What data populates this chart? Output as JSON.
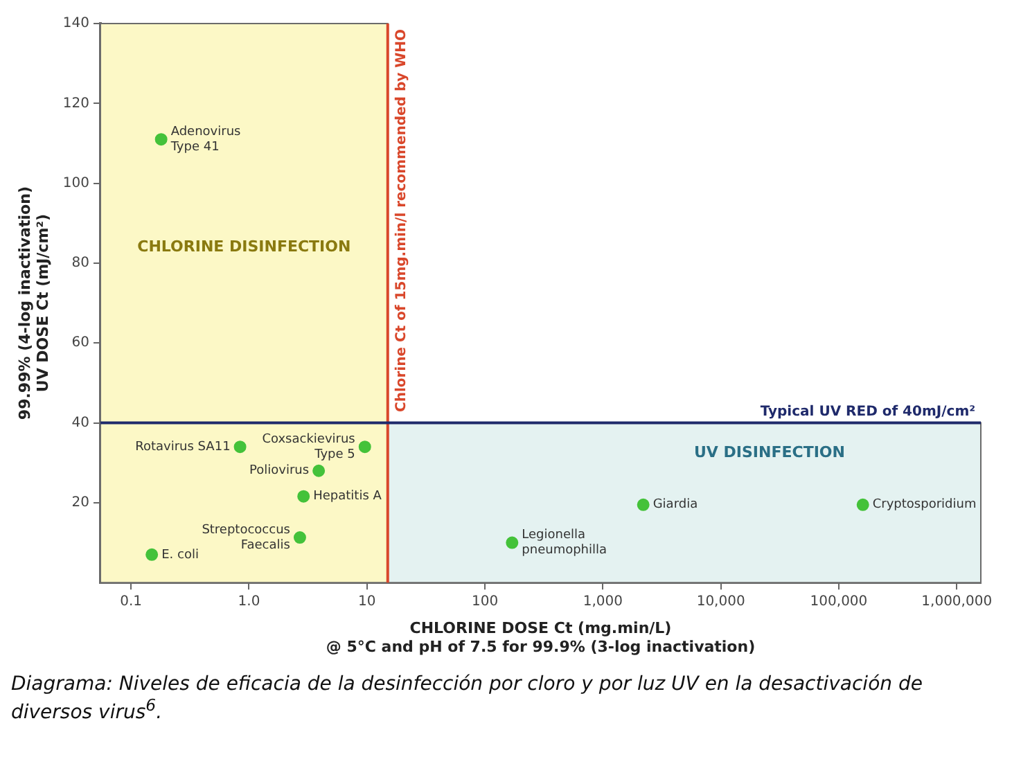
{
  "chart_data": {
    "type": "scatter",
    "xlabel": "CHLORINE DOSE Ct (mg.min/L)",
    "ylabel": "UV DOSE Ct (mJ/cm²)",
    "annotations": [
      "99.99% (4-log inactivation)",
      "@ 5°C and pH of 7.5 for 99.9% (3-log inactivation)",
      "Diagrama: Niveles de eficacia de la desinfección por cloro y por luz UV en la desactivación de diversos virus$^{6}$."
    ],
    "series": [
      {
        "name": "Adenovirus Type 41",
        "color": "#44c23a",
        "x": [
          0.18
        ],
        "values": [
          111
        ]
      },
      {
        "name": "Rotavirus SA11",
        "color": "#44c23a",
        "x": [
          0.84
        ],
        "values": [
          34
        ]
      },
      {
        "name": "Coxsackievirus Type 5",
        "color": "#44c23a",
        "x": [
          9.6
        ],
        "values": [
          34
        ]
      },
      {
        "name": "Poliovirus",
        "color": "#44c23a",
        "x": [
          3.9
        ],
        "values": [
          28
        ]
      },
      {
        "name": "Hepatitis A",
        "color": "#44c23a",
        "x": [
          2.9
        ],
        "values": [
          21.6
        ]
      },
      {
        "name": "Streptococcus Faecalis",
        "color": "#44c23a",
        "x": [
          2.7
        ],
        "values": [
          11.3
        ]
      },
      {
        "name": "E. coli",
        "color": "#44c23a",
        "x": [
          0.15
        ],
        "values": [
          7
        ]
      },
      {
        "name": "Legionella pneumophilla",
        "color": "#44c23a",
        "x": [
          170
        ],
        "values": [
          10
        ]
      },
      {
        "name": "Giardia",
        "color": "#44c23a",
        "x": [
          2200
        ],
        "values": [
          19.5
        ]
      },
      {
        "name": "Cryptosporidium",
        "color": "#44c23a",
        "x": [
          160000
        ],
        "values": [
          19.5
        ]
      }
    ],
    "log": "x",
    "xlim": [
      0.055,
      1600000
    ],
    "xticks": [
      0.1,
      {
        "value": 1,
        "label": "1.0"
      },
      10,
      100,
      {
        "value": 1000,
        "label": "1,000"
      },
      {
        "value": 10000,
        "label": "10,000"
      },
      {
        "value": 100000,
        "label": "100,000"
      },
      {
        "value": 1000000,
        "label": "1,000,000"
      }
    ],
    "ylim": [
      0,
      140
    ],
    "yticks": [
      20,
      40,
      60,
      80,
      100,
      120,
      140
    ],
    "ref_lines": [
      {
        "axis": "x",
        "value": 15,
        "label": "Chlorine Ct of 15mg.min/l recommended by WHO",
        "color": "#d9472b"
      },
      {
        "axis": "y",
        "value": 40,
        "label": "Typical UV RED of 40mJ/cm²",
        "color": "#1f2a6b"
      }
    ],
    "bands": [
      {
        "axis": "y",
        "from": 0,
        "to": 40,
        "label": "UV DISINFECTION",
        "color": "#e4f2f1"
      },
      {
        "axis": "x",
        "from": 0.055,
        "to": 15,
        "label": "CHLORINE DISINFECTION",
        "color": "#fcf8c6"
      }
    ],
    "grid": false,
    "legend": false,
    "marker": "circle"
  }
}
